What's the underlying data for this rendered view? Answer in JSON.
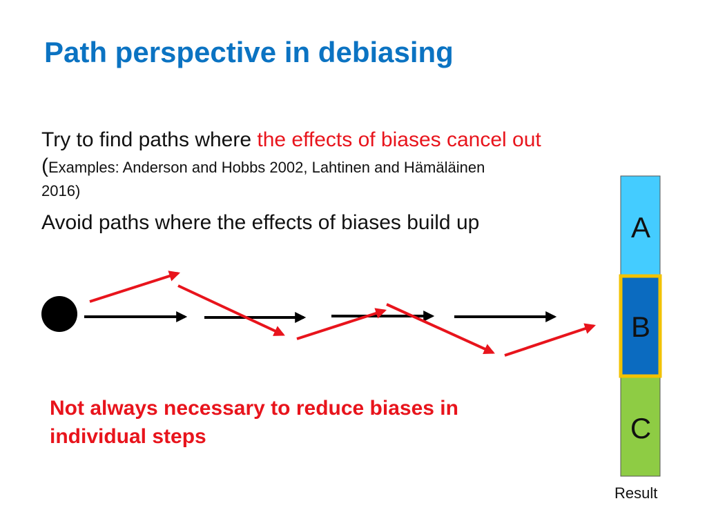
{
  "title": "Path perspective in debiasing",
  "bullets": {
    "first": {
      "prefix": "Try to find paths where ",
      "highlight": "the effects of biases cancel out",
      "paren_open": "(",
      "examples_line1": "Examples: Anderson and Hobbs 2002, Lahtinen and Hämäläinen",
      "examples_line2": "2016)"
    },
    "second": "Avoid paths where the effects of biases build up"
  },
  "note": "Not always necessary to reduce biases in individual steps",
  "result_bar": {
    "segments": [
      {
        "label": "A",
        "color": "#44ccff"
      },
      {
        "label": "B",
        "color": "#0b6bc0",
        "highlighted": true,
        "highlight_color": "#f2c200"
      },
      {
        "label": "C",
        "color": "#8ecc44"
      }
    ],
    "caption": "Result"
  },
  "colors": {
    "title": "#0b73c2",
    "emphasis": "#e8141c",
    "ideal_arrow": "#000000",
    "biased_arrow": "#e8141c"
  }
}
